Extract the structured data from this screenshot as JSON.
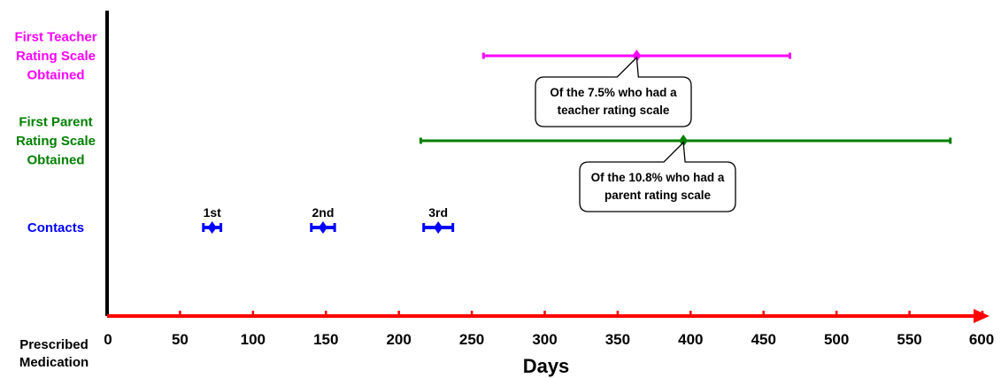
{
  "chart_data": {
    "type": "timeline-errorbar",
    "xlabel": "Days",
    "x_origin_label": "Prescribed Medication",
    "xlim": [
      0,
      600
    ],
    "xticks": [
      0,
      50,
      100,
      150,
      200,
      250,
      300,
      350,
      400,
      450,
      500,
      550,
      600
    ],
    "rows": [
      {
        "key": "teacher",
        "label": [
          "First Teacher",
          "Rating Scale",
          "Obtained"
        ],
        "color": "#ff00ff",
        "points": [
          {
            "x": 363,
            "low": 258,
            "high": 468
          }
        ],
        "callout": [
          "Of the 7.5% who had a",
          "teacher rating scale"
        ]
      },
      {
        "key": "parent",
        "label": [
          "First Parent",
          "Rating Scale",
          "Obtained"
        ],
        "color": "#008000",
        "points": [
          {
            "x": 395,
            "low": 215,
            "high": 578
          }
        ],
        "callout": [
          "Of the 10.8% who had a",
          "parent rating scale"
        ]
      },
      {
        "key": "contacts",
        "label": [
          "Contacts"
        ],
        "color": "#0000ff",
        "points": [
          {
            "name": "1st",
            "x": 72,
            "low": 66,
            "high": 78
          },
          {
            "name": "2nd",
            "x": 148,
            "low": 140,
            "high": 156
          },
          {
            "name": "3rd",
            "x": 227,
            "low": 217,
            "high": 237
          }
        ]
      }
    ],
    "axis_color": "#ff0000",
    "y_axis_color": "#000000"
  }
}
